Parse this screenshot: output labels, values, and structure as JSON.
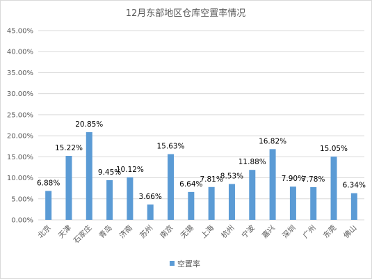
{
  "chart_data": {
    "type": "bar",
    "title": "12月东部地区仓库空置率情况",
    "categories": [
      "北京",
      "天津",
      "石家庄",
      "青岛",
      "济南",
      "苏州",
      "南京",
      "无锡",
      "上海",
      "杭州",
      "宁波",
      "嘉兴",
      "深圳",
      "广州",
      "东莞",
      "佛山"
    ],
    "series": [
      {
        "name": "空置率",
        "values": [
          6.88,
          15.22,
          20.85,
          9.45,
          10.12,
          3.66,
          15.63,
          6.64,
          7.81,
          8.53,
          11.88,
          16.82,
          7.9,
          7.78,
          15.05,
          6.34
        ],
        "labels": [
          "6.88%",
          "15.22%",
          "20.85%",
          "9.45%",
          "10.12%",
          "3.66%",
          "15.63%",
          "6.64%",
          "7.81%",
          "8.53%",
          "11.88%",
          "16.82%",
          "7.90%",
          "7.78%",
          "15.05%",
          "6.34%"
        ],
        "color": "#5b9bd5"
      }
    ],
    "ylim": [
      0,
      45
    ],
    "yticks": [
      "0.00%",
      "5.00%",
      "10.00%",
      "15.00%",
      "20.00%",
      "25.00%",
      "30.00%",
      "35.00%",
      "40.00%",
      "45.00%"
    ],
    "xlabel": "",
    "ylabel": "",
    "grid": true,
    "gridColor": "#d9d9d9",
    "legend": "bottom"
  }
}
